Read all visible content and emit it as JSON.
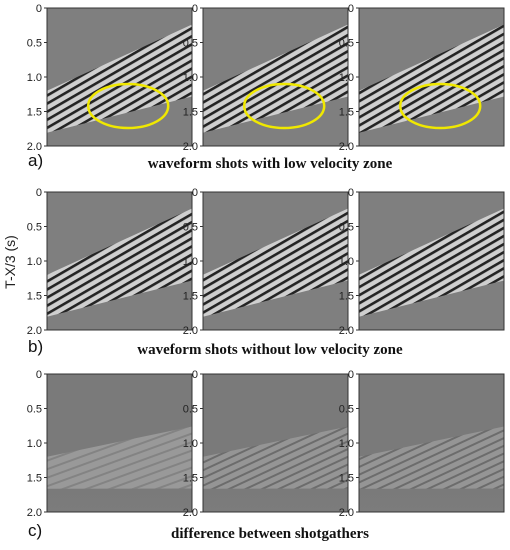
{
  "figure": {
    "y_axis_label": "T-X/3 (s)",
    "y_ticks": [
      "0",
      "0.5",
      "1.0",
      "1.5",
      "2.0"
    ],
    "highlight_color": "#f0e800",
    "rows": [
      {
        "label": "a)",
        "caption": "waveform shots with low velocity zone",
        "highlight": true
      },
      {
        "label": "b)",
        "caption": "waveform shots without low velocity zone",
        "highlight": false
      },
      {
        "label": "c)",
        "caption": "difference between shotgathers",
        "highlight": false
      }
    ]
  }
}
